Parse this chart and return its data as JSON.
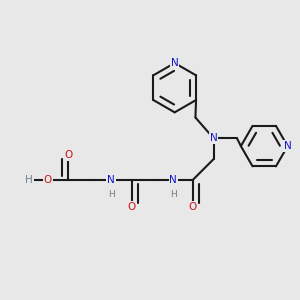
{
  "bg_color": "#e8e8e8",
  "bond_color": "#1a1a1a",
  "N_color": "#1414cc",
  "O_color": "#cc1414",
  "H_color": "#708090",
  "lw": 1.5,
  "dbo": 0.25,
  "fs": 7.5,
  "xlim": [
    -1.0,
    10.5
  ],
  "ylim": [
    1.5,
    10.0
  ]
}
